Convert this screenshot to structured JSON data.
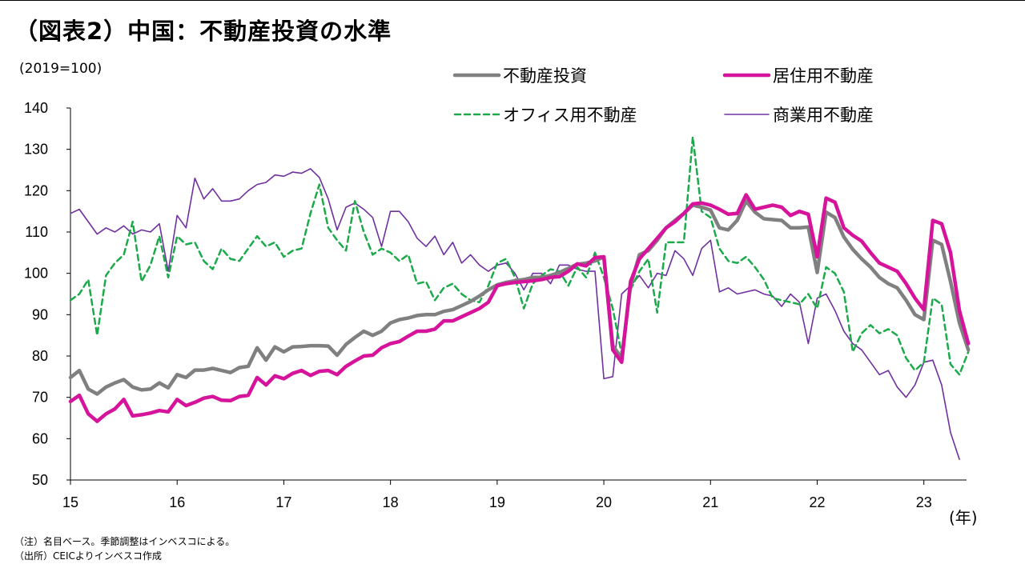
{
  "title": "（図表2）中国：不動産投資の水準",
  "notes": {
    "note1": "（注）名目ベース。季節調整はインベスコによる。",
    "note2": "（出所）CEICよりインベスコ作成"
  },
  "chart_data": {
    "type": "line",
    "title": "（図表2）中国：不動産投資の水準",
    "ylabel": "(2019=100)",
    "xlabel": "(年)",
    "ylim": [
      50,
      140
    ],
    "yticks": [
      50,
      60,
      70,
      80,
      90,
      100,
      110,
      120,
      130,
      140
    ],
    "xlim": [
      2015,
      2023.4
    ],
    "xticks": [
      2015,
      2016,
      2017,
      2018,
      2019,
      2020,
      2021,
      2022,
      2023
    ],
    "xtick_labels": [
      "15",
      "16",
      "17",
      "18",
      "19",
      "20",
      "21",
      "22",
      "23"
    ],
    "x_start_year": 2015,
    "x_frequency": "monthly",
    "grid": false,
    "legend_position": "top-right",
    "series": [
      {
        "name": "不動産投資",
        "color": "#808080",
        "style": "thick",
        "values": [
          74.8,
          76.5,
          72.0,
          70.8,
          72.5,
          73.5,
          74.3,
          72.5,
          71.8,
          72.0,
          73.5,
          72.3,
          75.5,
          74.8,
          76.6,
          76.6,
          77.0,
          76.5,
          76.0,
          77.2,
          77.5,
          82.0,
          79.0,
          82.2,
          81.0,
          82.2,
          82.3,
          82.5,
          82.5,
          82.4,
          80.2,
          82.8,
          84.5,
          86.0,
          85.0,
          86.0,
          88.0,
          88.8,
          89.2,
          89.8,
          90.0,
          90.0,
          90.8,
          91.2,
          92.2,
          93.2,
          94.5,
          96.0,
          97.2,
          97.8,
          98.2,
          98.5,
          99.0,
          99.0,
          99.5,
          100.2,
          101.2,
          102.2,
          102.5,
          103.0,
          104.0,
          82.5,
          79.5,
          97.0,
          104.5,
          105.5,
          108.0,
          111.0,
          112.8,
          114.5,
          116.5,
          116.0,
          115.3,
          111.0,
          110.5,
          112.8,
          117.5,
          114.8,
          113.2,
          113.0,
          112.8,
          111.0,
          111.0,
          111.2,
          100.2,
          114.8,
          113.5,
          108.8,
          105.8,
          103.5,
          101.5,
          99.0,
          97.5,
          96.5,
          93.5,
          90.0,
          88.8,
          108.0,
          107.0,
          98.0,
          88.0,
          81.5
        ]
      },
      {
        "name": "居住用不動産",
        "color": "#d6139b",
        "style": "thick",
        "values": [
          69.0,
          70.5,
          66.0,
          64.2,
          66.0,
          67.2,
          69.5,
          65.5,
          65.8,
          66.2,
          66.8,
          66.5,
          69.5,
          68.0,
          68.8,
          69.8,
          70.2,
          69.3,
          69.2,
          70.2,
          70.5,
          74.8,
          73.0,
          75.2,
          74.5,
          75.8,
          76.5,
          75.3,
          76.3,
          76.5,
          75.5,
          77.5,
          78.8,
          80.0,
          80.2,
          82.0,
          83.0,
          83.5,
          84.8,
          86.0,
          86.0,
          86.5,
          88.5,
          88.5,
          89.5,
          90.5,
          91.5,
          93.0,
          97.0,
          97.5,
          97.8,
          98.0,
          98.2,
          98.5,
          99.0,
          99.2,
          100.5,
          102.3,
          101.8,
          103.8,
          104.0,
          81.5,
          78.5,
          98.0,
          103.5,
          106.0,
          108.5,
          111.0,
          112.5,
          114.5,
          116.8,
          117.0,
          116.5,
          115.5,
          114.3,
          114.5,
          119.0,
          115.5,
          116.0,
          116.5,
          116.0,
          114.0,
          115.0,
          114.3,
          104.0,
          118.2,
          117.2,
          111.0,
          109.2,
          107.8,
          105.0,
          102.5,
          101.5,
          100.5,
          97.5,
          94.0,
          91.2,
          112.8,
          112.0,
          105.0,
          91.0,
          83.0
        ]
      },
      {
        "name": "オフィス用不動産",
        "color": "#1aaa4a",
        "style": "dashed",
        "values": [
          93.5,
          95.0,
          98.5,
          85.0,
          99.5,
          102.5,
          104.5,
          112.5,
          98.0,
          102.0,
          109.0,
          99.0,
          109.0,
          107.0,
          107.5,
          103.0,
          101.0,
          106.0,
          103.5,
          103.0,
          106.0,
          109.0,
          106.5,
          107.5,
          104.0,
          105.5,
          106.0,
          114.5,
          121.5,
          111.0,
          108.0,
          105.5,
          117.5,
          110.0,
          104.5,
          106.0,
          105.0,
          103.0,
          104.5,
          97.5,
          98.0,
          93.5,
          96.5,
          97.5,
          95.0,
          93.5,
          93.0,
          97.0,
          102.5,
          103.5,
          99.0,
          91.5,
          97.5,
          99.5,
          101.0,
          100.5,
          97.0,
          101.5,
          99.0,
          105.0,
          99.0,
          91.5,
          80.5,
          96.0,
          100.5,
          103.5,
          90.5,
          107.5,
          107.5,
          107.5,
          133.0,
          115.0,
          113.5,
          106.0,
          103.0,
          102.5,
          104.0,
          101.5,
          98.5,
          94.0,
          93.5,
          93.0,
          92.5,
          95.0,
          91.5,
          101.5,
          100.0,
          95.5,
          81.0,
          85.5,
          87.5,
          85.5,
          86.5,
          85.0,
          79.5,
          76.5,
          78.5,
          94.0,
          92.5,
          78.0,
          75.5,
          81.0
        ]
      },
      {
        "name": "商業用不動産",
        "color": "#7030a0",
        "style": "thin",
        "values": [
          114.5,
          115.5,
          112.5,
          109.5,
          111.0,
          110.0,
          111.5,
          109.5,
          110.5,
          110.0,
          112.0,
          100.5,
          114.0,
          111.0,
          123.0,
          118.0,
          120.5,
          117.5,
          117.5,
          118.0,
          120.0,
          121.5,
          122.0,
          123.8,
          123.5,
          124.5,
          124.2,
          125.3,
          123.2,
          118.0,
          110.5,
          116.0,
          117.0,
          115.5,
          113.5,
          106.5,
          115.0,
          115.0,
          112.5,
          108.5,
          106.5,
          109.0,
          104.5,
          107.5,
          102.5,
          104.5,
          102.0,
          100.5,
          102.0,
          102.5,
          100.0,
          96.0,
          100.0,
          100.0,
          97.5,
          102.0,
          102.0,
          101.0,
          100.5,
          100.5,
          74.5,
          75.0,
          95.0,
          97.0,
          99.5,
          96.5,
          100.0,
          99.5,
          105.5,
          103.5,
          99.5,
          106.0,
          108.0,
          95.5,
          96.5,
          95.0,
          95.5,
          96.0,
          95.0,
          94.5,
          92.0,
          95.0,
          93.0,
          83.0,
          94.0,
          95.0,
          91.0,
          86.0,
          83.0,
          81.5,
          78.5,
          75.5,
          76.5,
          72.5,
          70.0,
          73.0,
          78.5,
          79.0,
          73.0,
          61.5,
          55.0
        ]
      }
    ]
  }
}
